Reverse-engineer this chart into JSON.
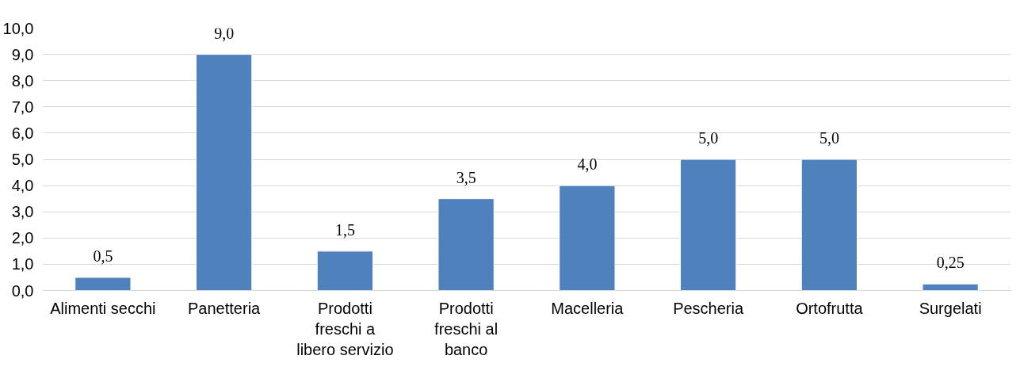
{
  "chart_data": {
    "type": "bar",
    "categories": [
      "Alimenti secchi",
      "Panetteria",
      "Prodotti freschi a libero servizio",
      "Prodotti freschi al banco",
      "Macelleria",
      "Pescheria",
      "Ortofrutta",
      "Surgelati"
    ],
    "values": [
      0.5,
      9.0,
      1.5,
      3.5,
      4.0,
      5.0,
      5.0,
      0.25
    ],
    "value_labels": [
      "0,5",
      "9,0",
      "1,5",
      "3,5",
      "4,0",
      "5,0",
      "5,0",
      "0,25"
    ],
    "color": "#4f81bd",
    "ylim": [
      0,
      10
    ],
    "yticks": [
      {
        "value": 0,
        "label": "0,0"
      },
      {
        "value": 1,
        "label": "1,0"
      },
      {
        "value": 2,
        "label": "2,0"
      },
      {
        "value": 3,
        "label": "3,0"
      },
      {
        "value": 4,
        "label": "4,0"
      },
      {
        "value": 5,
        "label": "5,0"
      },
      {
        "value": 6,
        "label": "6,0"
      },
      {
        "value": 7,
        "label": "7,0"
      },
      {
        "value": 8,
        "label": "8,0"
      },
      {
        "value": 9,
        "label": "9,0"
      },
      {
        "value": 10,
        "label": "10,0"
      }
    ],
    "grid": "y"
  }
}
